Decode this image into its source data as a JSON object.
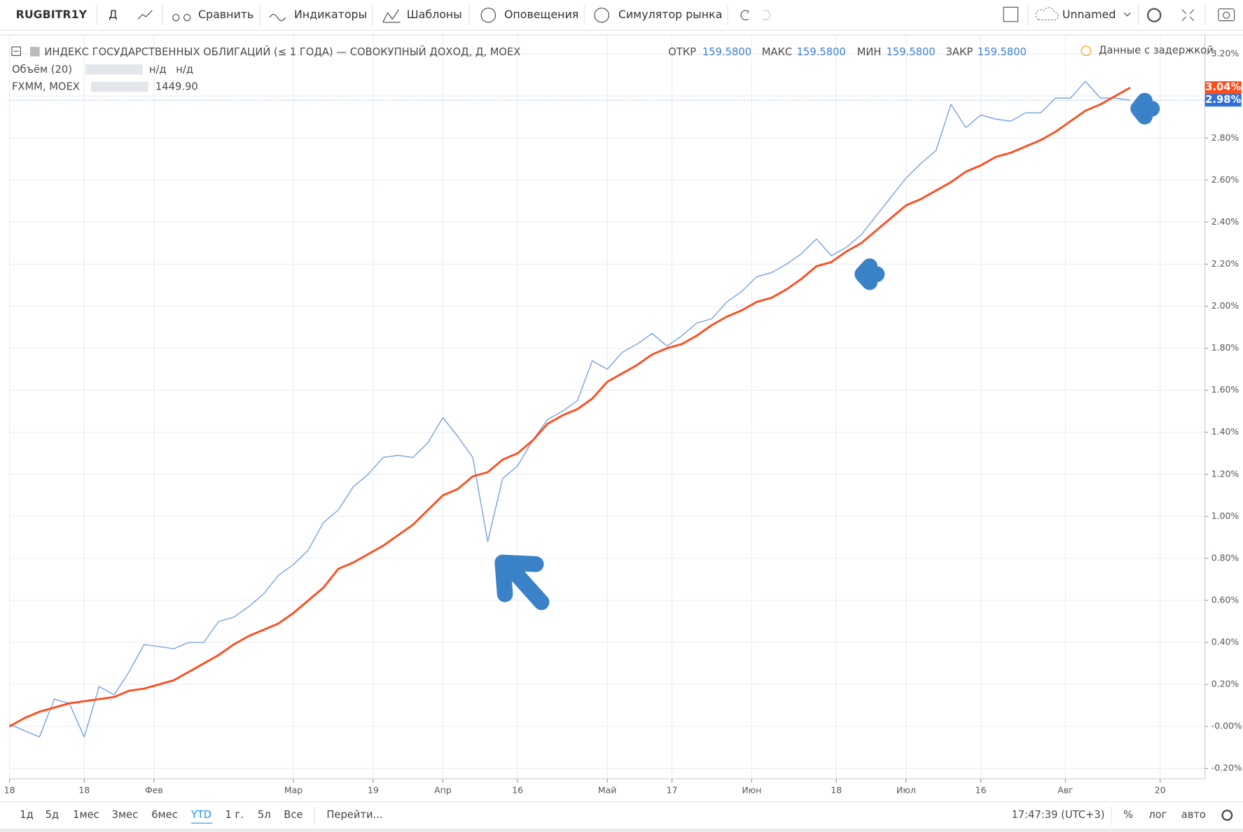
{
  "toolbar": {
    "items": [
      "Д",
      "Сравнить",
      "Индикаторы",
      "Шаблоны",
      "Оповещения",
      "Симулятор рынка"
    ],
    "layout_name": "Unnamed"
  },
  "header": {
    "title": "ИНДЕКС ГОСУДАРСТВЕННЫХ ОБЛИГАЦИЙ (≤ 1 ГОДА) — СОВОКУПНЫЙ ДОХОД, Д, MOEX",
    "ohlc": [
      {
        "label": "ОТКР",
        "value": "159.5800"
      },
      {
        "label": "МАКС",
        "value": "159.5800"
      },
      {
        "label": "МИН",
        "value": "159.5800"
      },
      {
        "label": "ЗАКР",
        "value": "159.5800"
      }
    ],
    "volume": {
      "label": "Объём (20)",
      "values": [
        "н/д",
        "н/д"
      ]
    },
    "compare_value": "1449.90",
    "delay_notice": "Данные с задержкой"
  },
  "bottom": {
    "ranges": [
      "1д",
      "5д",
      "1мес",
      "3мес",
      "6мес",
      "YTD",
      "1 г.",
      "5л",
      "Все"
    ],
    "goto": "Перейти...",
    "time": "17:47:39 (UTC+3)",
    "scale_buttons": [
      "%",
      "лог",
      "авто"
    ]
  },
  "chart_data": {
    "type": "line",
    "x": [
      0,
      3,
      6,
      9,
      12,
      15,
      18,
      21,
      24,
      27,
      30,
      33,
      36,
      39,
      42,
      45,
      48,
      51,
      54,
      57,
      60,
      63,
      66,
      69,
      72,
      75,
      78,
      81,
      84,
      87,
      90,
      93,
      96,
      99,
      102,
      105,
      108,
      111,
      114,
      117,
      120,
      123,
      126,
      129,
      132,
      135,
      138,
      141,
      144,
      147,
      150,
      153,
      156,
      159,
      162,
      165,
      168,
      171,
      174,
      177,
      180,
      183,
      186,
      189,
      192,
      195,
      198,
      201,
      204,
      207,
      210,
      213,
      216,
      219,
      222,
      225
    ],
    "series": [
      {
        "name": "RUGBITR1Y",
        "color": "#7ea6e0",
        "last_label": "2.98%",
        "values": [
          0.01,
          -0.02,
          -0.05,
          0.13,
          0.11,
          -0.05,
          0.19,
          0.15,
          0.26,
          0.39,
          0.38,
          0.37,
          0.4,
          0.4,
          0.5,
          0.52,
          0.57,
          0.63,
          0.72,
          0.77,
          0.84,
          0.97,
          1.03,
          1.14,
          1.2,
          1.28,
          1.29,
          1.28,
          1.35,
          1.47,
          1.38,
          1.28,
          0.88,
          1.18,
          1.24,
          1.36,
          1.46,
          1.5,
          1.55,
          1.74,
          1.7,
          1.78,
          1.82,
          1.87,
          1.81,
          1.86,
          1.92,
          1.94,
          2.02,
          2.07,
          2.14,
          2.16,
          2.2,
          2.25,
          2.32,
          2.24,
          2.28,
          2.34,
          2.43,
          2.52,
          2.61,
          2.68,
          2.74,
          2.96,
          2.85,
          2.91,
          2.89,
          2.88,
          2.92,
          2.92,
          2.99,
          2.99,
          3.07,
          2.99,
          2.99,
          2.98
        ]
      },
      {
        "name": "FXMM, MOEX",
        "color": "#ff4a1a",
        "last_label": "3.04%",
        "values": [
          0.0,
          0.04,
          0.07,
          0.09,
          0.11,
          0.12,
          0.13,
          0.14,
          0.17,
          0.18,
          0.2,
          0.22,
          0.26,
          0.3,
          0.34,
          0.39,
          0.43,
          0.46,
          0.49,
          0.54,
          0.6,
          0.66,
          0.75,
          0.78,
          0.82,
          0.86,
          0.91,
          0.96,
          1.03,
          1.1,
          1.13,
          1.19,
          1.21,
          1.27,
          1.3,
          1.36,
          1.44,
          1.48,
          1.51,
          1.56,
          1.64,
          1.68,
          1.72,
          1.77,
          1.8,
          1.82,
          1.86,
          1.91,
          1.95,
          1.98,
          2.02,
          2.04,
          2.08,
          2.13,
          2.19,
          2.21,
          2.26,
          2.3,
          2.36,
          2.42,
          2.48,
          2.51,
          2.55,
          2.59,
          2.64,
          2.67,
          2.71,
          2.73,
          2.76,
          2.79,
          2.83,
          2.88,
          2.93,
          2.96,
          3.0,
          3.04
        ]
      }
    ],
    "xlim": [
      0,
      240
    ],
    "xticks": [
      {
        "value": 0,
        "label": "18"
      },
      {
        "value": 15,
        "label": "18"
      },
      {
        "value": 29,
        "label": "Фев"
      },
      {
        "value": 57,
        "label": "Мар"
      },
      {
        "value": 73,
        "label": "19"
      },
      {
        "value": 87,
        "label": "Апр"
      },
      {
        "value": 102,
        "label": "16"
      },
      {
        "value": 120,
        "label": "Май"
      },
      {
        "value": 133,
        "label": "17"
      },
      {
        "value": 149,
        "label": "Июн"
      },
      {
        "value": 166,
        "label": "18"
      },
      {
        "value": 180,
        "label": "Июл"
      },
      {
        "value": 195,
        "label": "16"
      },
      {
        "value": 212,
        "label": "Авг"
      },
      {
        "value": 231,
        "label": "20"
      }
    ],
    "ylim": [
      -0.2,
      3.2
    ],
    "yticks": [
      {
        "value": 3.2,
        "label": "3.20%"
      },
      {
        "value": 3.0,
        "label": "3.00%"
      },
      {
        "value": 2.8,
        "label": "2.80%"
      },
      {
        "value": 2.6,
        "label": "2.60%"
      },
      {
        "value": 2.4,
        "label": "2.40%"
      },
      {
        "value": 2.2,
        "label": "2.20%"
      },
      {
        "value": 2.0,
        "label": "2.00%"
      },
      {
        "value": 1.8,
        "label": "1.80%"
      },
      {
        "value": 1.6,
        "label": "1.60%"
      },
      {
        "value": 1.4,
        "label": "1.40%"
      },
      {
        "value": 1.2,
        "label": "1.20%"
      },
      {
        "value": 1.0,
        "label": "1.00%"
      },
      {
        "value": 0.8,
        "label": "0.80%"
      },
      {
        "value": 0.6,
        "label": "0.60%"
      },
      {
        "value": 0.4,
        "label": "0.40%"
      },
      {
        "value": 0.2,
        "label": "0.20%"
      },
      {
        "value": 0,
        "label": "-0.00%"
      },
      {
        "value": -0.2,
        "label": "-0.20%"
      }
    ],
    "grid": true
  }
}
